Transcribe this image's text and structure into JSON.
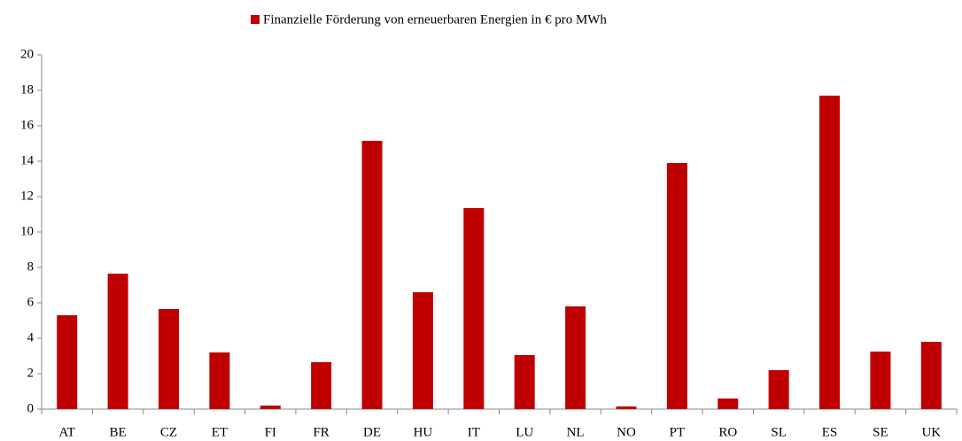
{
  "chart_data": {
    "type": "bar",
    "categories": [
      "AT",
      "BE",
      "CZ",
      "ET",
      "FI",
      "FR",
      "DE",
      "HU",
      "IT",
      "LU",
      "NL",
      "NO",
      "PT",
      "RO",
      "SL",
      "ES",
      "SE",
      "UK"
    ],
    "series": [
      {
        "name": "Finanzielle Förderung von erneuerbaren Energien in € pro MWh",
        "color": "#c00000",
        "values": [
          5.3,
          7.65,
          5.65,
          3.2,
          0.2,
          2.65,
          15.15,
          6.6,
          11.35,
          3.05,
          5.8,
          0.15,
          13.9,
          0.6,
          2.2,
          17.7,
          3.25,
          3.8
        ]
      }
    ],
    "ylim": [
      0,
      20
    ],
    "yticks": [
      0,
      2,
      4,
      6,
      8,
      10,
      12,
      14,
      16,
      18,
      20
    ],
    "grid": false,
    "legend": "top"
  }
}
